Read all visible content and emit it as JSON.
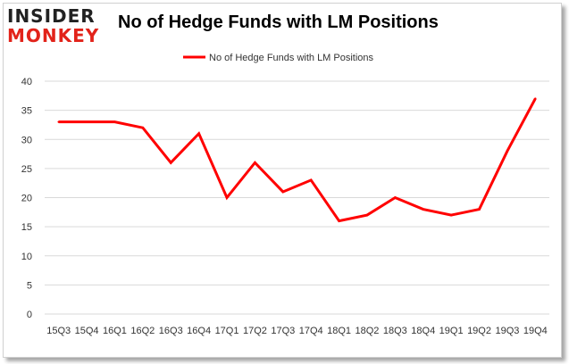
{
  "logo": {
    "line1": "INSIDER",
    "line2": "MONKEY",
    "colors": {
      "line1": "#222222",
      "line2": "#e2231a"
    }
  },
  "chart_data": {
    "type": "line",
    "title": "No of Hedge Funds with LM Positions",
    "categories": [
      "15Q3",
      "15Q4",
      "16Q1",
      "16Q2",
      "16Q3",
      "16Q4",
      "17Q1",
      "17Q2",
      "17Q3",
      "17Q4",
      "18Q1",
      "18Q2",
      "18Q3",
      "18Q4",
      "19Q1",
      "19Q2",
      "19Q3",
      "19Q4"
    ],
    "series": [
      {
        "name": "No of Hedge Funds with LM Positions",
        "values": [
          33,
          33,
          33,
          32,
          26,
          31,
          20,
          26,
          21,
          23,
          16,
          17,
          20,
          18,
          17,
          18,
          28,
          37
        ],
        "color": "#ff0000"
      }
    ],
    "xlabel": "",
    "ylabel": "",
    "ylim": [
      0,
      40
    ],
    "yticks": [
      0,
      5,
      10,
      15,
      20,
      25,
      30,
      35,
      40
    ],
    "grid": true,
    "legend_position": "top-center"
  }
}
